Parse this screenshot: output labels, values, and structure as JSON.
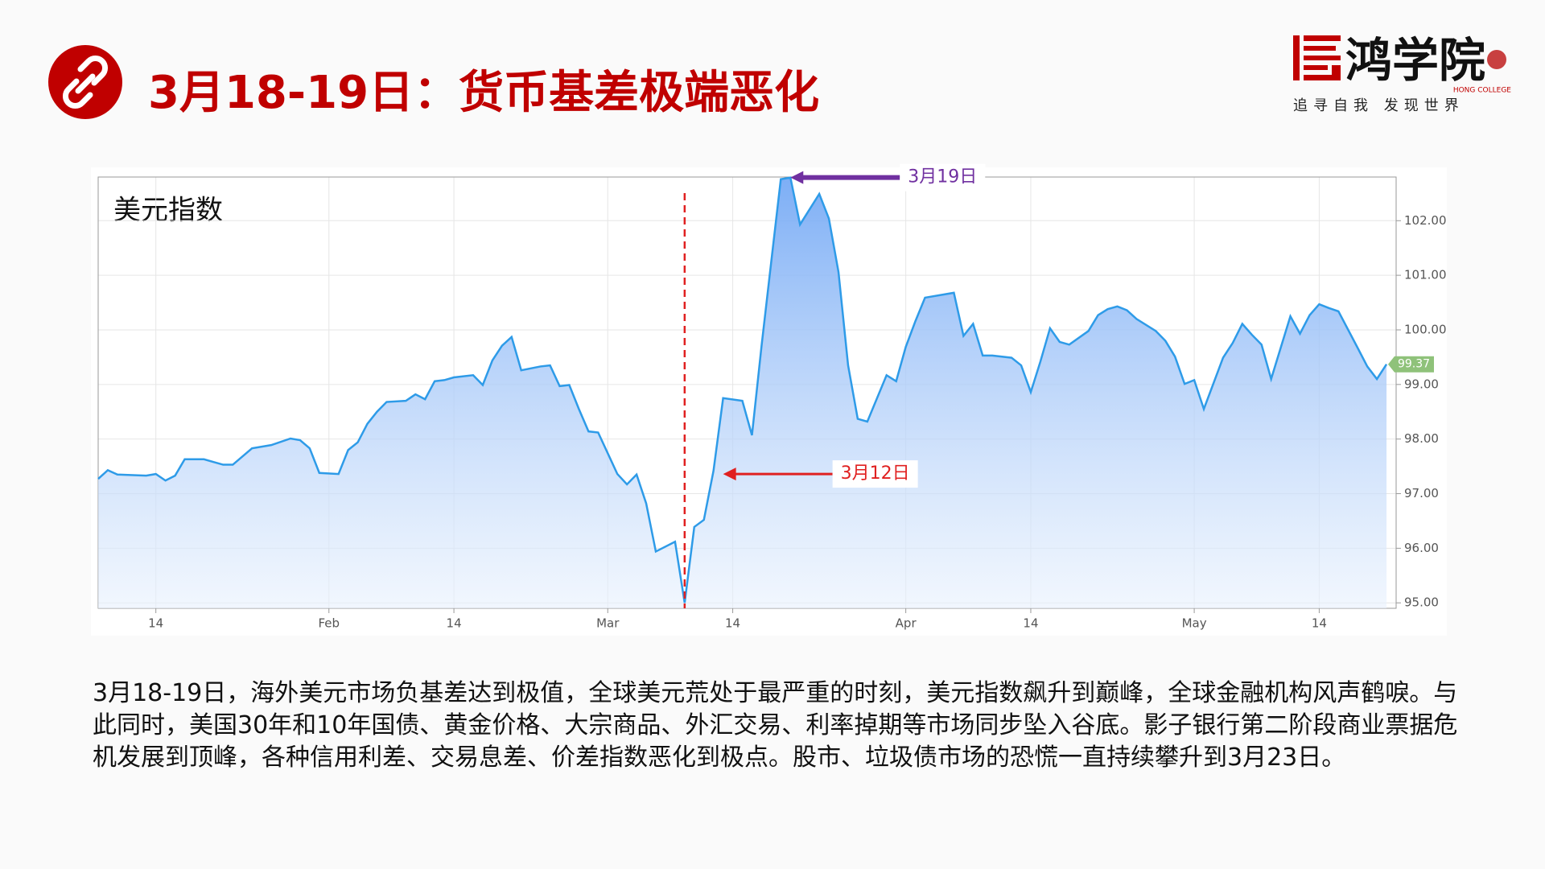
{
  "header": {
    "title": "3月18-19日：货币基差极端恶化"
  },
  "logo": {
    "name": "鸿学院",
    "english": "HONG COLLEGE",
    "slogan": "追寻自我 发现世界"
  },
  "chart_data": {
    "type": "area",
    "title": "美元指数",
    "x": [
      8,
      9,
      10,
      13,
      14,
      15,
      16,
      17,
      19,
      20,
      21,
      22,
      24,
      26,
      28,
      29,
      30,
      31,
      33,
      34,
      35,
      36,
      37,
      38,
      40,
      41,
      42,
      43,
      44,
      45,
      47,
      48,
      49,
      50,
      51,
      52,
      54,
      55,
      56,
      57,
      58,
      59,
      60,
      62,
      63,
      64,
      65,
      66,
      68,
      69,
      70,
      71,
      72,
      73,
      75,
      76,
      77,
      78,
      79,
      80,
      81,
      83,
      84,
      85,
      86,
      87,
      88,
      90,
      91,
      92,
      93,
      94,
      96,
      97,
      98,
      99,
      100,
      101,
      103,
      104,
      105,
      106,
      107,
      108,
      109,
      111,
      112,
      113,
      114,
      115,
      116,
      118,
      119,
      120,
      121,
      122,
      123,
      125,
      126,
      127,
      128,
      129,
      130,
      132,
      133,
      134,
      135,
      136,
      137,
      139,
      140,
      141,
      142
    ],
    "series": [
      {
        "name": "美元指数",
        "color": "#2e9be8",
        "values": [
          97.27,
          97.43,
          97.35,
          97.33,
          97.36,
          97.24,
          97.33,
          97.63,
          97.63,
          97.58,
          97.53,
          97.53,
          97.83,
          97.89,
          98.01,
          97.98,
          97.83,
          97.38,
          97.36,
          97.8,
          97.94,
          98.28,
          98.5,
          98.68,
          98.7,
          98.82,
          98.73,
          99.06,
          99.08,
          99.13,
          99.17,
          98.99,
          99.44,
          99.71,
          99.87,
          99.26,
          99.33,
          99.35,
          98.97,
          98.99,
          98.55,
          98.14,
          98.12,
          97.36,
          97.17,
          97.35,
          96.82,
          95.94,
          96.12,
          95.0,
          96.39,
          96.52,
          97.42,
          98.75,
          98.7,
          98.07,
          99.71,
          101.24,
          102.76,
          102.79,
          101.93,
          102.49,
          102.04,
          101.06,
          99.35,
          98.37,
          98.32,
          99.17,
          99.06,
          99.69,
          100.16,
          100.59,
          100.65,
          100.68,
          99.89,
          100.11,
          99.53,
          99.53,
          99.49,
          99.35,
          98.86,
          99.42,
          100.03,
          99.78,
          99.73,
          99.98,
          100.27,
          100.38,
          100.43,
          100.36,
          100.2,
          99.98,
          99.8,
          99.51,
          99.01,
          99.08,
          98.55,
          99.49,
          99.76,
          100.11,
          99.91,
          99.73,
          99.1,
          100.25,
          99.93,
          100.27,
          100.47,
          100.4,
          100.34,
          99.67,
          99.33,
          99.1,
          99.37
        ]
      }
    ],
    "xlim": [
      8,
      143
    ],
    "xticks": [
      {
        "value": 14,
        "label": "14"
      },
      {
        "value": 32,
        "label": "Feb"
      },
      {
        "value": 45,
        "label": "14"
      },
      {
        "value": 61,
        "label": "Mar"
      },
      {
        "value": 74,
        "label": "14"
      },
      {
        "value": 92,
        "label": "Apr"
      },
      {
        "value": 105,
        "label": "14"
      },
      {
        "value": 122,
        "label": "May"
      },
      {
        "value": 135,
        "label": "14"
      }
    ],
    "ylim": [
      94.9,
      102.8
    ],
    "yticks": [
      {
        "value": 95,
        "label": "95.00"
      },
      {
        "value": 96,
        "label": "96.00"
      },
      {
        "value": 97,
        "label": "97.00"
      },
      {
        "value": 98,
        "label": "98.00"
      },
      {
        "value": 99,
        "label": "99.00"
      },
      {
        "value": 100,
        "label": "100.00"
      },
      {
        "value": 101,
        "label": "101.00"
      },
      {
        "value": 102,
        "label": "102.00"
      }
    ],
    "grid": true,
    "vline": {
      "x": 69,
      "color": "#e02020"
    },
    "annotations": [
      {
        "text": "3月19日",
        "x": 80,
        "y": 102.79,
        "color": "#7030a0"
      },
      {
        "text": "3月12日",
        "x": 73,
        "y": 97.36,
        "color": "#e02020"
      }
    ]
  },
  "body": "3月18-19日，海外美元市场负基差达到极值，全球美元荒处于最严重的时刻，美元指数飙升到巅峰，全球金融机构风声鹤唳。与此同时，美国30年和10年国债、黄金价格、大宗商品、外汇交易、利率掉期等市场同步坠入谷底。影子银行第二阶段商业票据危机发展到顶峰，各种信用利差、交易息差、价差指数恶化到极点。股市、垃圾债市场的恐慌一直持续攀升到3月23日。"
}
